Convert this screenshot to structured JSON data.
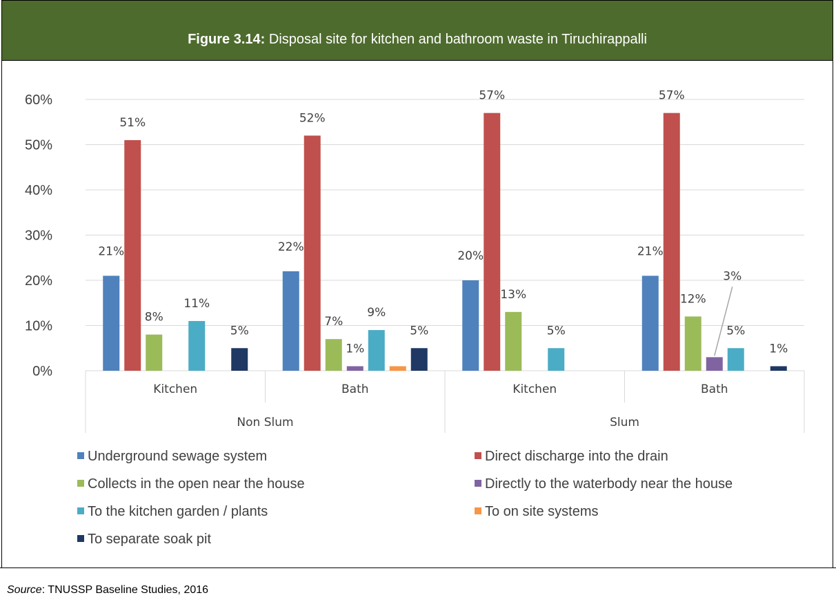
{
  "header": {
    "figure_label": "Figure 3.14:",
    "title": "Disposal site for kitchen and bathroom waste in Tiruchirappalli"
  },
  "source": {
    "label": "Source",
    "text": ": TNUSSP Baseline Studies, 2016"
  },
  "colors": {
    "header_bg": "#4e6b2e",
    "grid": "#d9d9d9"
  },
  "chart_data": {
    "type": "bar",
    "title": "",
    "xlabel": "",
    "ylabel": "",
    "ylim": [
      0,
      60
    ],
    "y_ticks": [
      "0%",
      "10%",
      "20%",
      "30%",
      "40%",
      "50%",
      "60%"
    ],
    "groups": [
      {
        "name": "Non Slum",
        "categories": [
          "Kitchen",
          "Bath"
        ]
      },
      {
        "name": "Slum",
        "categories": [
          "Kitchen",
          "Bath"
        ]
      }
    ],
    "categories": [
      "Kitchen",
      "Bath",
      "Kitchen",
      "Bath"
    ],
    "legend_position": "bottom",
    "grid": true,
    "series": [
      {
        "name": "Underground sewage system",
        "color": "#4f81bd",
        "values": [
          21,
          22,
          20,
          21
        ],
        "labels": [
          "21%",
          "22%",
          "20%",
          "21%"
        ]
      },
      {
        "name": "Direct discharge into the drain",
        "color": "#c0504d",
        "values": [
          51,
          52,
          57,
          57
        ],
        "labels": [
          "51%",
          "52%",
          "57%",
          "57%"
        ]
      },
      {
        "name": "Collects in the open near the house",
        "color": "#9bbb59",
        "values": [
          8,
          7,
          13,
          12
        ],
        "labels": [
          "8%",
          "7%",
          "13%",
          "12%"
        ]
      },
      {
        "name": "Directly to the waterbody near the house",
        "color": "#8064a2",
        "values": [
          null,
          1,
          null,
          3
        ],
        "labels": [
          "",
          "1%",
          "",
          "3%"
        ]
      },
      {
        "name": "To the kitchen garden / plants",
        "color": "#4bacc6",
        "values": [
          11,
          9,
          5,
          5
        ],
        "labels": [
          "11%",
          "9%",
          "5%",
          "5%"
        ]
      },
      {
        "name": "To  on site systems",
        "color": "#f79646",
        "values": [
          null,
          1,
          null,
          null
        ],
        "labels": [
          "",
          "",
          "",
          ""
        ]
      },
      {
        "name": "To separate soak pit",
        "color": "#1f3864",
        "values": [
          5,
          5,
          null,
          1
        ],
        "labels": [
          "5%",
          "5%",
          "",
          "1%"
        ]
      }
    ]
  }
}
